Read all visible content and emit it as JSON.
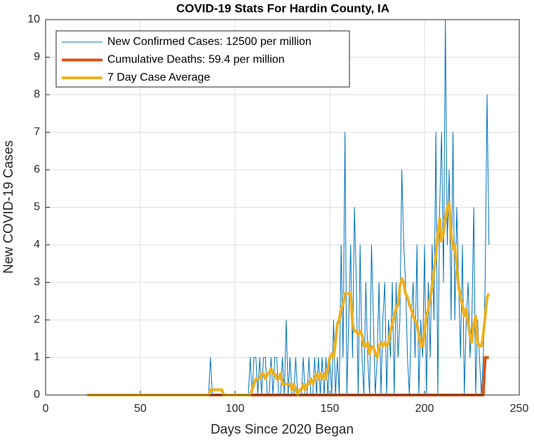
{
  "chart_data": {
    "type": "line",
    "title": "COVID-19 Stats For Hardin County, IA",
    "xlabel": "Days Since 2020 Began",
    "ylabel": "New COVID-19 Cases",
    "xlim": [
      0,
      250
    ],
    "xticks": [
      0,
      50,
      100,
      150,
      200,
      250
    ],
    "ylim": [
      0,
      10
    ],
    "yticks": [
      0,
      1,
      2,
      3,
      4,
      5,
      6,
      7,
      8,
      9,
      10
    ],
    "grid": true,
    "legend": "northwest",
    "x": [
      22,
      23,
      24,
      25,
      26,
      27,
      28,
      29,
      30,
      31,
      32,
      33,
      34,
      35,
      36,
      37,
      38,
      39,
      40,
      41,
      42,
      43,
      44,
      45,
      46,
      47,
      48,
      49,
      50,
      51,
      52,
      53,
      54,
      55,
      56,
      57,
      58,
      59,
      60,
      61,
      62,
      63,
      64,
      65,
      66,
      67,
      68,
      69,
      70,
      71,
      72,
      73,
      74,
      75,
      76,
      77,
      78,
      79,
      80,
      81,
      82,
      83,
      84,
      85,
      86,
      87,
      88,
      89,
      90,
      91,
      92,
      93,
      94,
      95,
      96,
      97,
      98,
      99,
      100,
      101,
      102,
      103,
      104,
      105,
      106,
      107,
      108,
      109,
      110,
      111,
      112,
      113,
      114,
      115,
      116,
      117,
      118,
      119,
      120,
      121,
      122,
      123,
      124,
      125,
      126,
      127,
      128,
      129,
      130,
      131,
      132,
      133,
      134,
      135,
      136,
      137,
      138,
      139,
      140,
      141,
      142,
      143,
      144,
      145,
      146,
      147,
      148,
      149,
      150,
      151,
      152,
      153,
      154,
      155,
      156,
      157,
      158,
      159,
      160,
      161,
      162,
      163,
      164,
      165,
      166,
      167,
      168,
      169,
      170,
      171,
      172,
      173,
      174,
      175,
      176,
      177,
      178,
      179,
      180,
      181,
      182,
      183,
      184,
      185,
      186,
      187,
      188,
      189,
      190,
      191,
      192,
      193,
      194,
      195,
      196,
      197,
      198,
      199,
      200,
      201,
      202,
      203,
      204,
      205,
      206,
      207,
      208,
      209,
      210,
      211,
      212,
      213,
      214,
      215,
      216,
      217,
      218,
      219,
      220,
      221,
      222,
      223,
      224,
      225,
      226,
      227,
      228,
      229,
      230,
      231,
      232,
      233,
      234
    ],
    "series": [
      {
        "name": "New Confirmed Cases: 12500 per million",
        "color": "#0072BD",
        "width": 1,
        "values": [
          0,
          0,
          0,
          0,
          0,
          0,
          0,
          0,
          0,
          0,
          0,
          0,
          0,
          0,
          0,
          0,
          0,
          0,
          0,
          0,
          0,
          0,
          0,
          0,
          0,
          0,
          0,
          0,
          0,
          0,
          0,
          0,
          0,
          0,
          0,
          0,
          0,
          0,
          0,
          0,
          0,
          0,
          0,
          0,
          0,
          0,
          0,
          0,
          0,
          0,
          0,
          0,
          0,
          0,
          0,
          0,
          0,
          0,
          0,
          0,
          0,
          0,
          0,
          0,
          0,
          1,
          0,
          0,
          0,
          0,
          0,
          0,
          0,
          0,
          0,
          0,
          0,
          0,
          0,
          0,
          0,
          0,
          0,
          0,
          0,
          0,
          1,
          0,
          1,
          1,
          0,
          1,
          0,
          1,
          1,
          0,
          0,
          1,
          0,
          1,
          1,
          0,
          0,
          1,
          0,
          2,
          0,
          1,
          0,
          0,
          1,
          0,
          0,
          0,
          1,
          0,
          0,
          1,
          0,
          0,
          1,
          0,
          1,
          0,
          1,
          0,
          1,
          0,
          1,
          0,
          2,
          0,
          1,
          0,
          4,
          1,
          7,
          0,
          2,
          4,
          1,
          5,
          3,
          0,
          4,
          1,
          0,
          3,
          1,
          0,
          4,
          2,
          0,
          1,
          3,
          0,
          2,
          3,
          0,
          2,
          1,
          3,
          0,
          3,
          1,
          2,
          6,
          4,
          3,
          1,
          0,
          2,
          3,
          1,
          4,
          0,
          2,
          1,
          4,
          0,
          3,
          1,
          4,
          2,
          7,
          0,
          5,
          7,
          3,
          10,
          4,
          6,
          2,
          7,
          2,
          5,
          3,
          1,
          4,
          0,
          2,
          3,
          1,
          2,
          5,
          0,
          2,
          1,
          0,
          1,
          3,
          8,
          4
        ]
      },
      {
        "name": "Cumulative Deaths: 59.4 per million",
        "color": "#D95319",
        "width": 4,
        "values": [
          0,
          0,
          0,
          0,
          0,
          0,
          0,
          0,
          0,
          0,
          0,
          0,
          0,
          0,
          0,
          0,
          0,
          0,
          0,
          0,
          0,
          0,
          0,
          0,
          0,
          0,
          0,
          0,
          0,
          0,
          0,
          0,
          0,
          0,
          0,
          0,
          0,
          0,
          0,
          0,
          0,
          0,
          0,
          0,
          0,
          0,
          0,
          0,
          0,
          0,
          0,
          0,
          0,
          0,
          0,
          0,
          0,
          0,
          0,
          0,
          0,
          0,
          0,
          0,
          0,
          0,
          0,
          0,
          0,
          0,
          0,
          0,
          0,
          0,
          0,
          0,
          0,
          0,
          0,
          0,
          0,
          0,
          0,
          0,
          0,
          0,
          0,
          0,
          0,
          0,
          0,
          0,
          0,
          0,
          0,
          0,
          0,
          0,
          0,
          0,
          0,
          0,
          0,
          0,
          0,
          0,
          0,
          0,
          0,
          0,
          0,
          0,
          0,
          0,
          0,
          0,
          0,
          0,
          0,
          0,
          0,
          0,
          0,
          0,
          0,
          0,
          0,
          0,
          0,
          0,
          0,
          0,
          0,
          0,
          0,
          0,
          0,
          0,
          0,
          0,
          0,
          0,
          0,
          0,
          0,
          0,
          0,
          0,
          0,
          0,
          0,
          0,
          0,
          0,
          0,
          0,
          0,
          0,
          0,
          0,
          0,
          0,
          0,
          0,
          0,
          0,
          0,
          0,
          0,
          0,
          0,
          0,
          0,
          0,
          0,
          0,
          0,
          0,
          0,
          0,
          0,
          0,
          0,
          0,
          0,
          0,
          0,
          0,
          0,
          0,
          0,
          0,
          0,
          0,
          0,
          0,
          0,
          0,
          0,
          0,
          0,
          0,
          0,
          0,
          0,
          0,
          0,
          0,
          0,
          0,
          1,
          1,
          1
        ]
      },
      {
        "name": "7 Day Case Average",
        "color": "#EDB120",
        "width": 4,
        "values": [
          0,
          0,
          0,
          0,
          0,
          0,
          0,
          0,
          0,
          0,
          0,
          0,
          0,
          0,
          0,
          0,
          0,
          0,
          0,
          0,
          0,
          0,
          0,
          0,
          0,
          0,
          0,
          0,
          0,
          0,
          0,
          0,
          0,
          0,
          0,
          0,
          0,
          0,
          0,
          0,
          0,
          0,
          0,
          0,
          0,
          0,
          0,
          0,
          0,
          0,
          0,
          0,
          0,
          0,
          0,
          0,
          0,
          0,
          0,
          0,
          0,
          0,
          0,
          0,
          0,
          0.14,
          0.14,
          0.14,
          0.14,
          0.14,
          0.14,
          0.14,
          0,
          0,
          0,
          0,
          0,
          0,
          0,
          0,
          0,
          0,
          0,
          0,
          0,
          0,
          0,
          0.14,
          0.29,
          0.43,
          0.43,
          0.43,
          0.57,
          0.57,
          0.43,
          0.57,
          0.57,
          0.71,
          0.57,
          0.57,
          0.43,
          0.43,
          0.57,
          0.29,
          0.29,
          0.29,
          0.29,
          0.29,
          0.14,
          0.29,
          0.14,
          0,
          0.14,
          0.14,
          0.29,
          0.14,
          0.29,
          0.29,
          0.43,
          0.29,
          0.43,
          0.57,
          0.43,
          0.57,
          0.43,
          0.57,
          0.43,
          0.71,
          1.0,
          1.1,
          1.0,
          1.4,
          1.9,
          2.0,
          2.3,
          2.4,
          2.7,
          2.7,
          2.7,
          2.7,
          1.9,
          1.7,
          1.7,
          1.6,
          1.7,
          1.6,
          1.3,
          1.3,
          1.4,
          1.1,
          1.3,
          1.3,
          1.1,
          1.0,
          1.3,
          1.4,
          1.3,
          1.4,
          1.3,
          1.4,
          1.7,
          1.9,
          2.1,
          2.3,
          2.4,
          2.9,
          3.1,
          3.0,
          2.7,
          2.6,
          2.4,
          2.3,
          2.1,
          2.0,
          1.9,
          1.6,
          1.3,
          1.3,
          1.7,
          2.1,
          2.3,
          2.6,
          2.9,
          3.3,
          3.7,
          4.3,
          4.7,
          4.1,
          4.3,
          4.7,
          5.0,
          5.1,
          4.3,
          3.9,
          4.0,
          3.4,
          2.9,
          2.6,
          2.4,
          2.1,
          2.3,
          1.9,
          1.6,
          1.4,
          1.9,
          2.1,
          1.4,
          1.3,
          1.3,
          1.6,
          2.1,
          2.6,
          2.7
        ]
      }
    ]
  }
}
